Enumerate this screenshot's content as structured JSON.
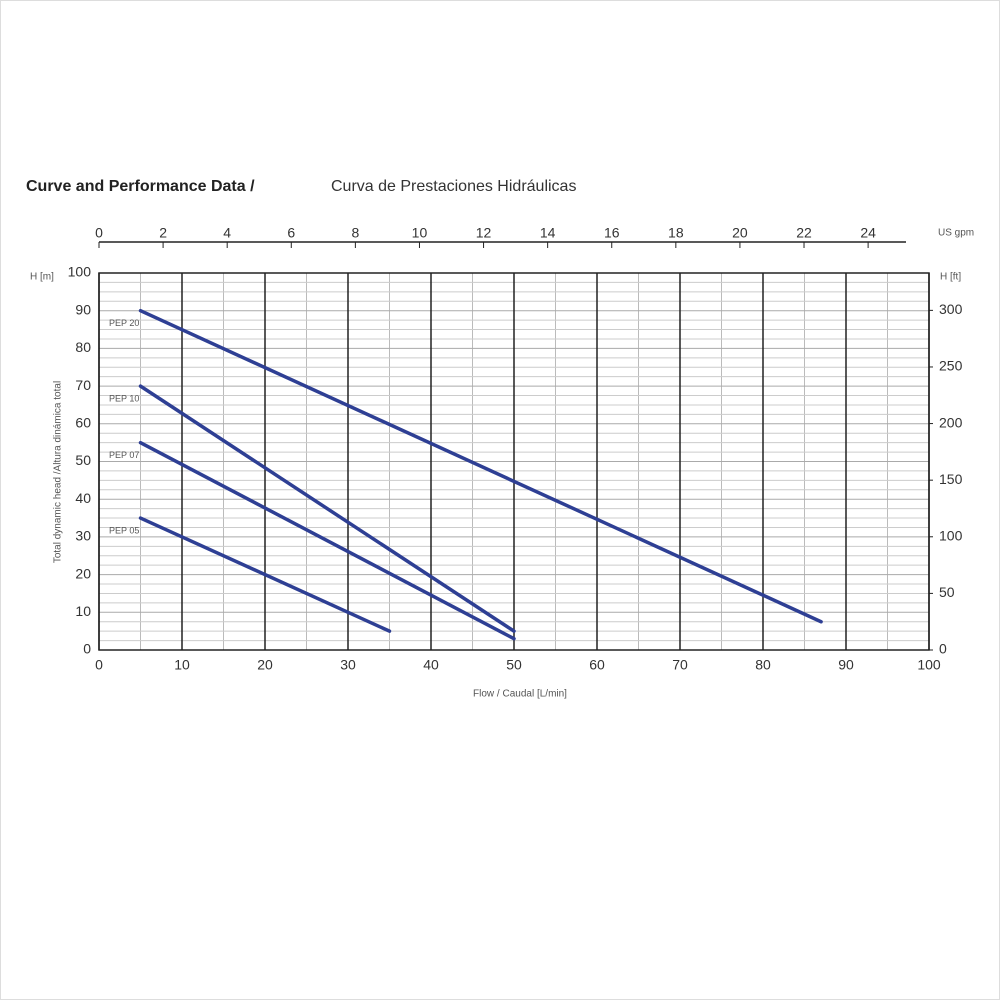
{
  "chart_data": {
    "type": "line",
    "title": "Curve and Performance Data /",
    "subtitle": "Curva de Prestaciones Hidráulicas",
    "x_label": "Flow / Caudal [L/min]",
    "y_label": "Total dynamic head /Altura dinámica total",
    "y_unit": "H [m]",
    "y2_unit": "H [ft]",
    "x2_unit": "US gpm",
    "xlim": [
      0,
      100
    ],
    "xticks": [
      0,
      10,
      20,
      30,
      40,
      50,
      60,
      70,
      80,
      90,
      100
    ],
    "ylim": [
      0,
      100
    ],
    "yticks": [
      0,
      10,
      20,
      30,
      40,
      50,
      60,
      70,
      80,
      90,
      100
    ],
    "x2lim": [
      0,
      25.9
    ],
    "x2ticks": [
      0,
      2,
      4,
      6,
      8,
      10,
      12,
      14,
      16,
      18,
      20,
      22,
      24
    ],
    "y2lim": [
      0,
      333
    ],
    "y2ticks": [
      0,
      50,
      100,
      150,
      200,
      250,
      300
    ],
    "grid": true,
    "series": [
      {
        "name": "PEP 20",
        "color": "#2e3f94",
        "x": [
          5,
          87
        ],
        "values": [
          90,
          7.5
        ]
      },
      {
        "name": "PEP 10",
        "color": "#2e3f94",
        "x": [
          5,
          50
        ],
        "values": [
          70,
          5
        ]
      },
      {
        "name": "PEP 07",
        "color": "#2e3f94",
        "x": [
          5,
          50
        ],
        "values": [
          55,
          3
        ]
      },
      {
        "name": "PEP 05",
        "color": "#2e3f94",
        "x": [
          5,
          35
        ],
        "values": [
          35,
          5
        ]
      }
    ]
  }
}
